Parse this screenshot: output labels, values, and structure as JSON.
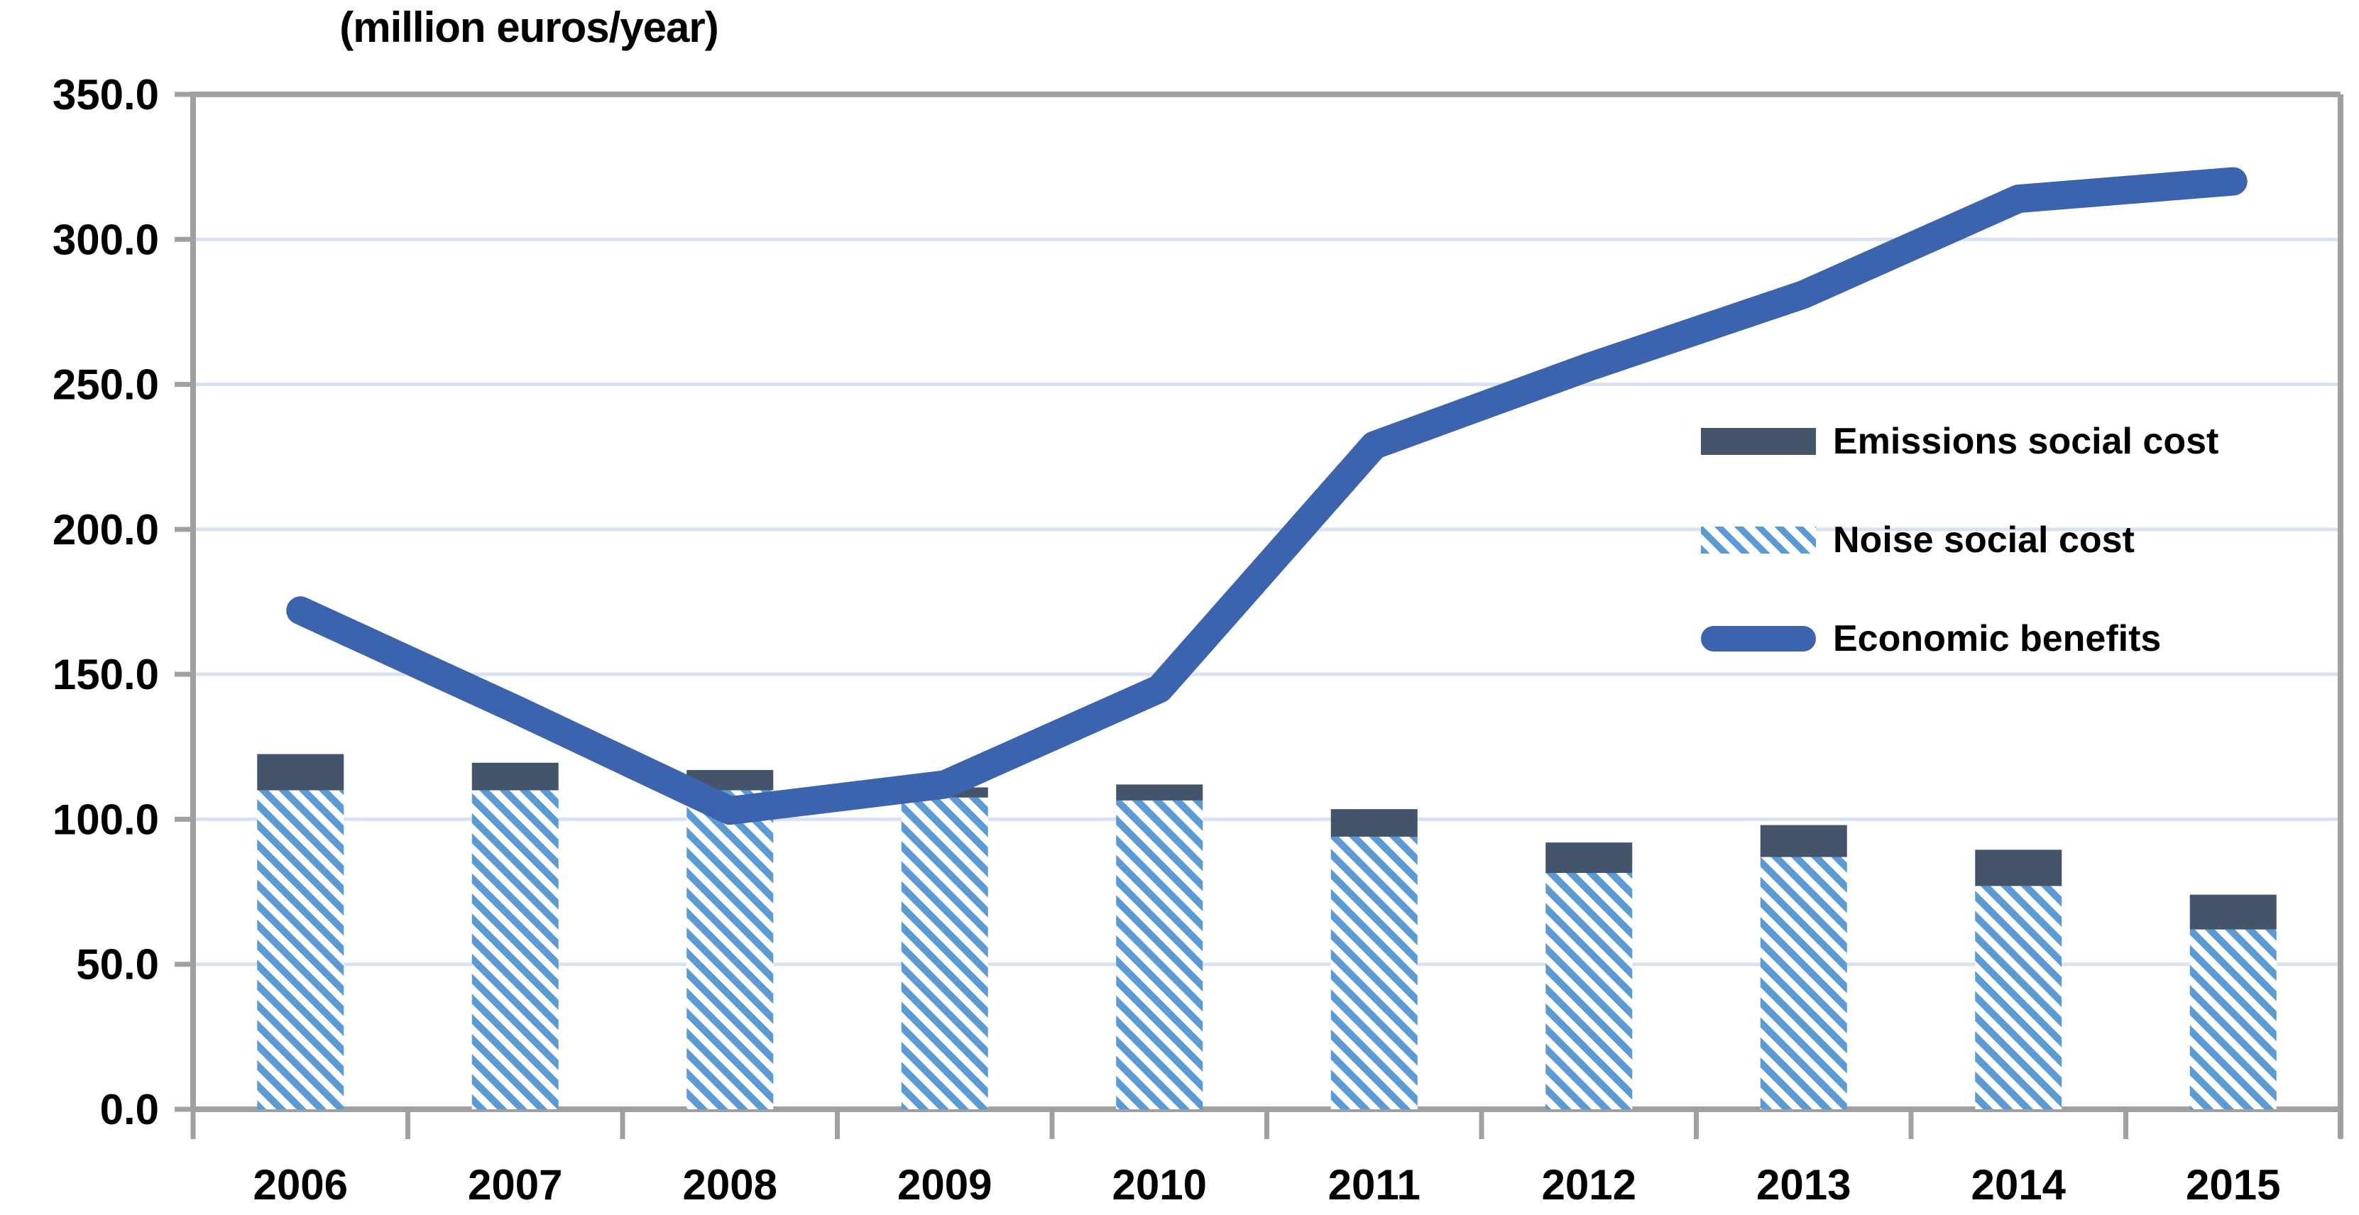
{
  "title": "(million euros/year)",
  "chart_data": {
    "type": "combo-stacked-bar-and-line",
    "categories": [
      "2006",
      "2007",
      "2008",
      "2009",
      "2010",
      "2011",
      "2012",
      "2013",
      "2014",
      "2015"
    ],
    "series": [
      {
        "name": "Emissions social cost",
        "type": "bar",
        "stack": "social-cost",
        "stack_position": "top",
        "color": "#44546A",
        "values": [
          12.5,
          9.5,
          7.0,
          3.5,
          5.5,
          9.5,
          10.5,
          11.0,
          12.5,
          12.0
        ]
      },
      {
        "name": "Noise social cost",
        "type": "bar",
        "stack": "social-cost",
        "stack_position": "bottom",
        "color": "#5B9BD5",
        "pattern": "diagonal-hatch",
        "values": [
          110.0,
          110.0,
          110.0,
          107.5,
          106.5,
          94.0,
          81.5,
          87.0,
          77.0,
          62.0
        ]
      },
      {
        "name": "Economic benefits",
        "type": "line",
        "color": "#3B63AE",
        "stroke_width": 40,
        "values": [
          172,
          138,
          103,
          112,
          145,
          229,
          256,
          281,
          314,
          320
        ]
      }
    ],
    "ylim": [
      0,
      350
    ],
    "ytick_step": 50,
    "yticks": [
      "0.0",
      "50.0",
      "100.0",
      "150.0",
      "200.0",
      "250.0",
      "300.0",
      "350.0"
    ],
    "grid": true,
    "gridline_color": "#D9E2F3",
    "axis_color": "#A0A0A0",
    "legend_position": "middle-right",
    "xlabel": "",
    "ylabel": ""
  }
}
